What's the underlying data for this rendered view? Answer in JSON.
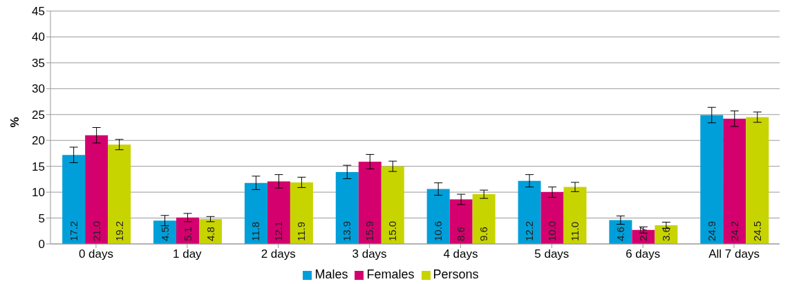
{
  "chart_data": {
    "type": "bar",
    "ylabel": "%",
    "categories": [
      "0 days",
      "1 day",
      "2 days",
      "3 days",
      "4 days",
      "5 days",
      "6 days",
      "All 7 days"
    ],
    "series": [
      {
        "name": "Males",
        "color": "#009fd9",
        "values": [
          17.2,
          4.5,
          11.8,
          13.9,
          10.6,
          12.2,
          4.6,
          24.9
        ],
        "value_labels": [
          "17.2",
          "4.5",
          "11.8",
          "13.9",
          "10.6",
          "12.2",
          "4.6",
          "24.9"
        ],
        "errors": [
          1.5,
          1.0,
          1.3,
          1.3,
          1.2,
          1.2,
          0.8,
          1.5
        ]
      },
      {
        "name": "Females",
        "color": "#d4006e",
        "values": [
          21.0,
          5.1,
          12.1,
          15.9,
          8.6,
          10.0,
          2.7,
          24.2
        ],
        "value_labels": [
          "21.0",
          "5.1",
          "12.1",
          "15.9",
          "8.6",
          "10.0",
          "2.7",
          "24.2"
        ],
        "errors": [
          1.5,
          0.8,
          1.3,
          1.4,
          1.0,
          1.0,
          0.6,
          1.5
        ]
      },
      {
        "name": "Persons",
        "color": "#c8d400",
        "values": [
          19.2,
          4.8,
          11.9,
          15.0,
          9.6,
          11.0,
          3.6,
          24.5
        ],
        "value_labels": [
          "19.2",
          "4.8",
          "11.9",
          "15.0",
          "9.6",
          "11.0",
          "3.6",
          "24.5"
        ],
        "errors": [
          1.0,
          0.5,
          1.0,
          1.0,
          0.8,
          0.9,
          0.6,
          1.0
        ]
      }
    ],
    "ylim": [
      0,
      45
    ],
    "yticks": [
      0,
      5,
      10,
      15,
      20,
      25,
      30,
      35,
      40,
      45
    ],
    "grid": "y",
    "legend": "bottom"
  }
}
